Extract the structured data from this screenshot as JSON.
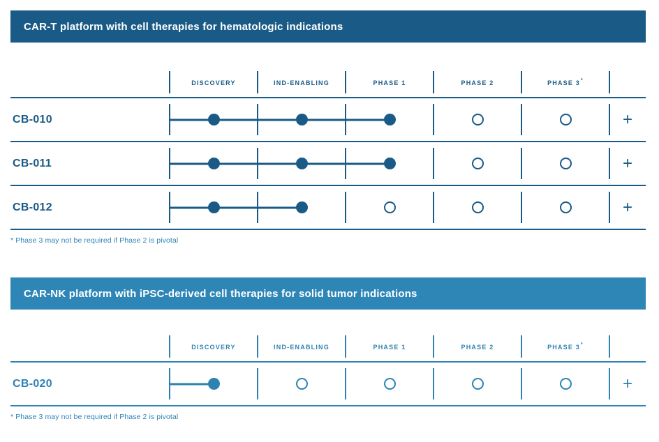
{
  "page": {
    "background": "#ffffff"
  },
  "sections": [
    {
      "title": "CAR-T platform with cell therapies for hematologic indications",
      "bar_color": "#1a5a86",
      "color": "#1a5a86",
      "footnote_color": "#2e82b4",
      "phases": [
        {
          "label": "DISCOVERY",
          "sup": ""
        },
        {
          "label": "IND-ENABLING",
          "sup": ""
        },
        {
          "label": "PHASE 1",
          "sup": ""
        },
        {
          "label": "PHASE 2",
          "sup": ""
        },
        {
          "label": "PHASE 3",
          "sup": "*"
        }
      ],
      "plus": "+",
      "rows": [
        {
          "label": "CB-010",
          "statuses": [
            "filled",
            "filled",
            "filled",
            "open",
            "open"
          ]
        },
        {
          "label": "CB-011",
          "statuses": [
            "filled",
            "filled",
            "filled",
            "open",
            "open"
          ]
        },
        {
          "label": "CB-012",
          "statuses": [
            "filled",
            "filled",
            "open",
            "open",
            "open"
          ]
        }
      ],
      "footnote": "* Phase 3 may not be required if Phase 2 is pivotal"
    },
    {
      "title": "CAR-NK platform with iPSC-derived cell therapies for solid tumor indications",
      "bar_color": "#2e86b7",
      "color": "#2e82b2",
      "footnote_color": "#2e82b4",
      "phases": [
        {
          "label": "DISCOVERY",
          "sup": ""
        },
        {
          "label": "IND-ENABLING",
          "sup": ""
        },
        {
          "label": "PHASE 1",
          "sup": ""
        },
        {
          "label": "PHASE 2",
          "sup": ""
        },
        {
          "label": "PHASE 3",
          "sup": "*"
        }
      ],
      "plus": "+",
      "rows": [
        {
          "label": "CB-020",
          "statuses": [
            "filled",
            "open",
            "open",
            "open",
            "open"
          ]
        }
      ],
      "footnote": "* Phase 3 may not be required if Phase 2 is pivotal"
    }
  ],
  "chart_data": [
    {
      "type": "table",
      "title": "CAR-T platform with cell therapies for hematologic indications",
      "columns": [
        "DISCOVERY",
        "IND-ENABLING",
        "PHASE 1",
        "PHASE 2",
        "PHASE 3*"
      ],
      "rows": [
        {
          "program": "CB-010",
          "stage_reached": "PHASE 1",
          "status_by_phase": [
            "filled",
            "filled",
            "filled",
            "open",
            "open"
          ],
          "additional_indications_marker": "+"
        },
        {
          "program": "CB-011",
          "stage_reached": "PHASE 1",
          "status_by_phase": [
            "filled",
            "filled",
            "filled",
            "open",
            "open"
          ],
          "additional_indications_marker": "+"
        },
        {
          "program": "CB-012",
          "stage_reached": "IND-ENABLING",
          "status_by_phase": [
            "filled",
            "filled",
            "open",
            "open",
            "open"
          ],
          "additional_indications_marker": "+"
        }
      ],
      "footnote": "* Phase 3 may not be required if Phase 2 is pivotal",
      "legend_position": "none",
      "grid": "row-separators"
    },
    {
      "type": "table",
      "title": "CAR-NK platform with iPSC-derived cell therapies for solid tumor indications",
      "columns": [
        "DISCOVERY",
        "IND-ENABLING",
        "PHASE 1",
        "PHASE 2",
        "PHASE 3*"
      ],
      "rows": [
        {
          "program": "CB-020",
          "stage_reached": "DISCOVERY",
          "status_by_phase": [
            "filled",
            "open",
            "open",
            "open",
            "open"
          ],
          "additional_indications_marker": "+"
        }
      ],
      "footnote": "* Phase 3 may not be required if Phase 2 is pivotal",
      "legend_position": "none",
      "grid": "row-separators"
    }
  ]
}
